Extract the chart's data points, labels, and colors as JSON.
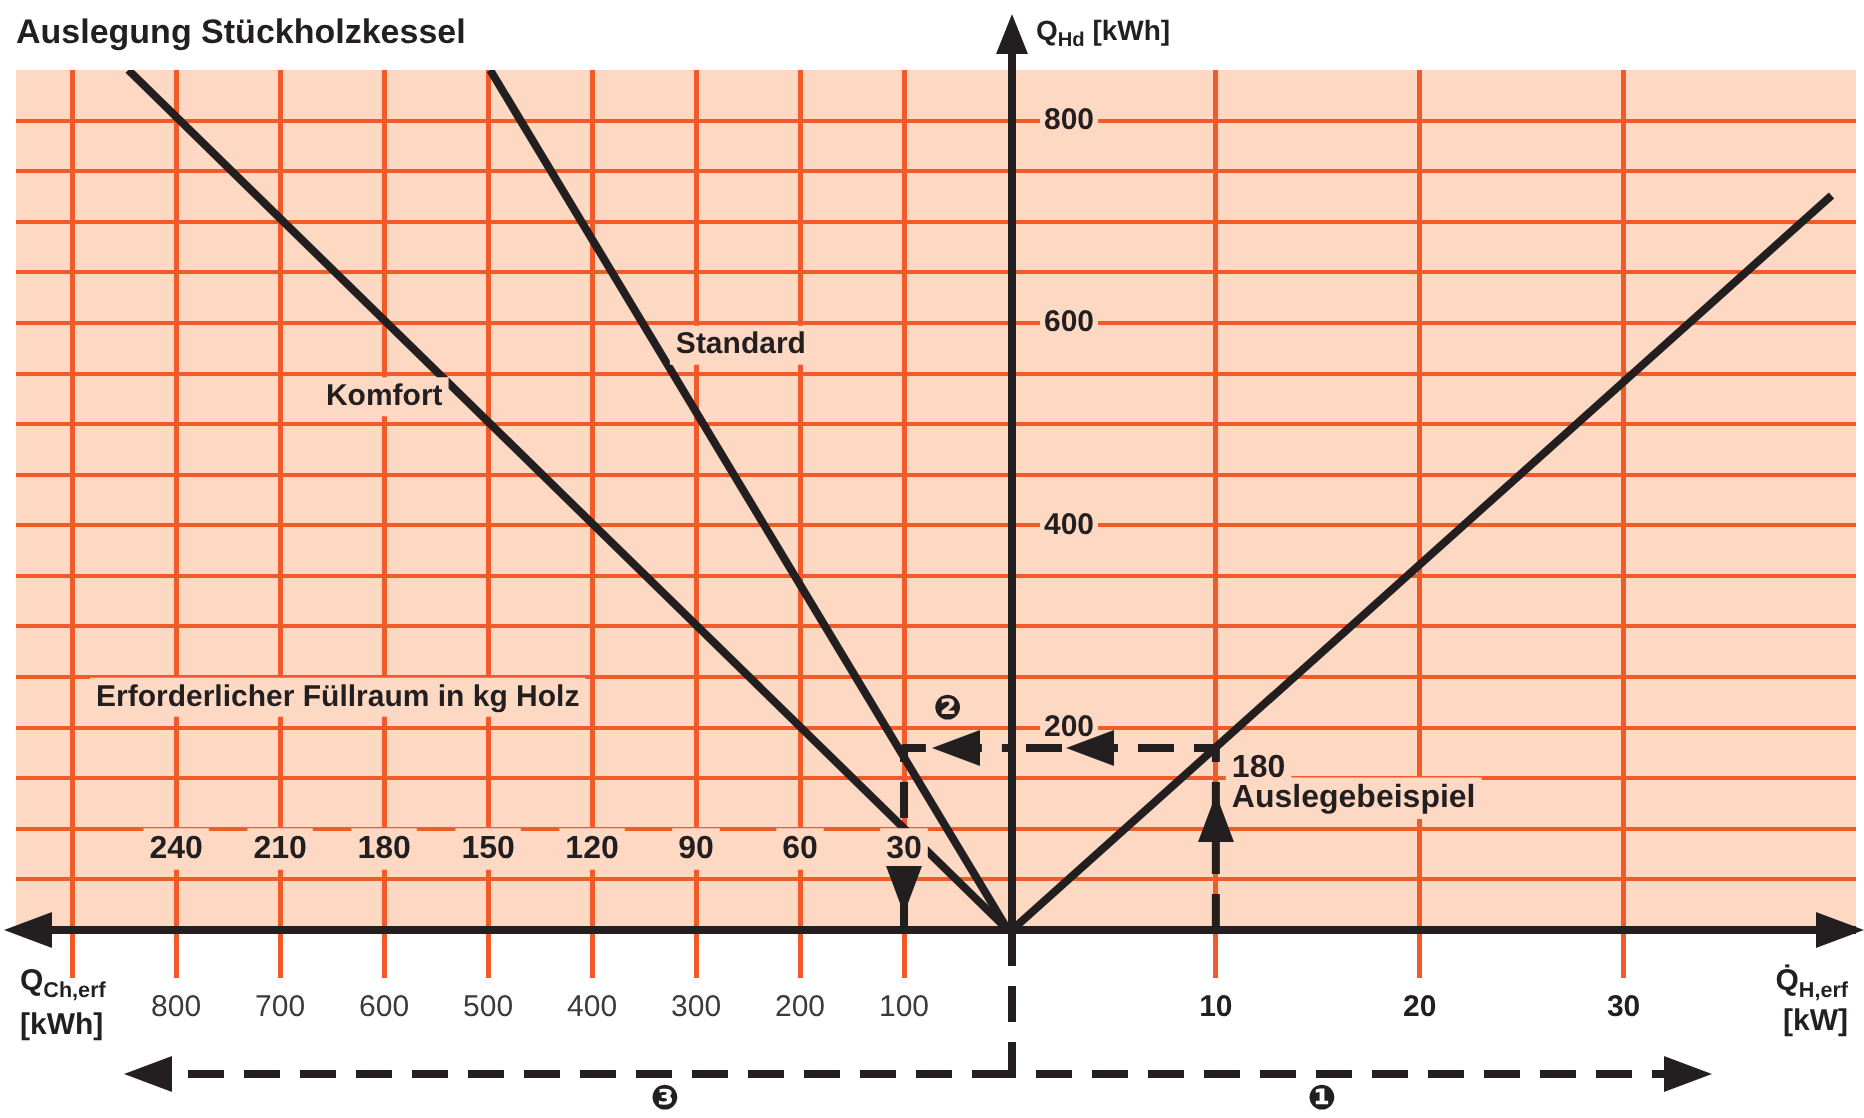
{
  "chart_data": [
    {
      "type": "line",
      "title": "Auslegung Stückholzkessel",
      "xlabel": "Q$_{Ch,erf}$ [kWh]",
      "x2label": "Erforderlicher Füllraum in kg Holz",
      "xlim": [
        954,
        0
      ],
      "ylim": [
        0,
        850
      ],
      "x2lim": [
        286.2,
        0
      ],
      "xticks": [
        {
          "value": 900,
          "label": null
        },
        800,
        700,
        600,
        500,
        400,
        300,
        200,
        100
      ],
      "x2ticks": [
        240,
        210,
        180,
        150,
        120,
        90,
        60,
        30
      ],
      "yticks": [
        {
          "value": 50,
          "label": null
        },
        {
          "value": 100,
          "label": null
        },
        {
          "value": 150,
          "label": null
        },
        {
          "value": 200,
          "label": null
        },
        {
          "value": 250,
          "label": null
        },
        {
          "value": 300,
          "label": null
        },
        {
          "value": 350,
          "label": null
        },
        {
          "value": 400,
          "label": null
        },
        {
          "value": 450,
          "label": null
        },
        {
          "value": 500,
          "label": null
        },
        {
          "value": 550,
          "label": null
        },
        {
          "value": 600,
          "label": null
        },
        {
          "value": 650,
          "label": null
        },
        {
          "value": 700,
          "label": null
        },
        {
          "value": 750,
          "label": null
        },
        {
          "value": 800,
          "label": null
        }
      ],
      "tick_labels": "x",
      "grid": true,
      "legend": false,
      "line_style": "solid",
      "marker": "none",
      "series": [
        {
          "name": "Komfort",
          "color": "#231f20",
          "x": [
            0,
            846
          ],
          "values": [
            0,
            850
          ]
        },
        {
          "name": "Standard",
          "color": "#231f20",
          "x": [
            0,
            498
          ],
          "values": [
            0,
            850
          ]
        },
        {
          "color": "#231f20",
          "x": [
            100,
            100,
            0
          ],
          "values": [
            0,
            180,
            180
          ],
          "line_style": "dashed"
        }
      ],
      "annotations": [
        "❷",
        "❸"
      ]
    },
    {
      "type": "line",
      "ylabel": "Q$_{Hd}$ [kWh]",
      "xlabel": "Q̇$_{H,erf}$ [kW]",
      "xlim": [
        0,
        41.4
      ],
      "ylim": [
        0,
        850
      ],
      "xticks": [
        10,
        20,
        30
      ],
      "yticks": [
        {
          "value": 50,
          "label": null
        },
        {
          "value": 100,
          "label": null
        },
        {
          "value": 150,
          "label": null
        },
        200,
        {
          "value": 250,
          "label": null
        },
        {
          "value": 300,
          "label": null
        },
        {
          "value": 350,
          "label": null
        },
        400,
        {
          "value": 450,
          "label": null
        },
        {
          "value": 500,
          "label": null
        },
        {
          "value": 550,
          "label": null
        },
        600,
        {
          "value": 650,
          "label": null
        },
        {
          "value": 700,
          "label": null
        },
        {
          "value": 750,
          "label": null
        },
        800
      ],
      "grid": true,
      "legend": false,
      "line_style": "solid",
      "marker": "none",
      "series": [
        {
          "color": "#231f20",
          "x": [
            0,
            40.2
          ],
          "values": [
            0,
            726
          ]
        },
        {
          "color": "#231f20",
          "x": [
            10,
            10,
            0
          ],
          "values": [
            0,
            180,
            180
          ],
          "line_style": "dashed"
        }
      ],
      "annotations": [
        "❶",
        {
          "text": "180",
          "x": 10,
          "y": 180
        },
        {
          "text": "Auslegebeispiel",
          "x": 10,
          "y": 150
        }
      ]
    }
  ]
}
